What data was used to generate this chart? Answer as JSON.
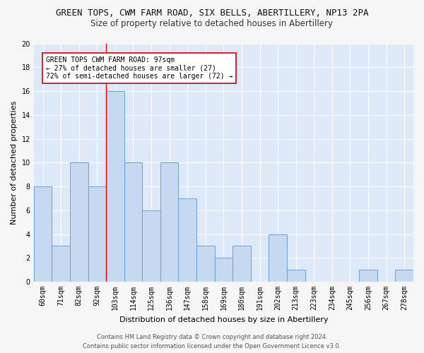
{
  "title": "GREEN TOPS, CWM FARM ROAD, SIX BELLS, ABERTILLERY, NP13 2PA",
  "subtitle": "Size of property relative to detached houses in Abertillery",
  "xlabel": "Distribution of detached houses by size in Abertillery",
  "ylabel": "Number of detached properties",
  "categories": [
    "60sqm",
    "71sqm",
    "82sqm",
    "92sqm",
    "103sqm",
    "114sqm",
    "125sqm",
    "136sqm",
    "147sqm",
    "158sqm",
    "169sqm",
    "180sqm",
    "191sqm",
    "202sqm",
    "213sqm",
    "223sqm",
    "234sqm",
    "245sqm",
    "256sqm",
    "267sqm",
    "278sqm"
  ],
  "values": [
    8,
    3,
    10,
    8,
    16,
    10,
    6,
    10,
    7,
    3,
    2,
    3,
    0,
    4,
    1,
    0,
    0,
    0,
    1,
    0,
    1
  ],
  "bar_color": "#c6d9f1",
  "bar_edge_color": "#6a9fd8",
  "redline_index": 3.5,
  "ylim": [
    0,
    20
  ],
  "yticks": [
    0,
    2,
    4,
    6,
    8,
    10,
    12,
    14,
    16,
    18,
    20
  ],
  "annotation_title": "GREEN TOPS CWM FARM ROAD: 97sqm",
  "annotation_line1": "← 27% of detached houses are smaller (27)",
  "annotation_line2": "72% of semi-detached houses are larger (72) →",
  "annotation_box_facecolor": "#ffffff",
  "annotation_box_edgecolor": "#cc0000",
  "footer_line1": "Contains HM Land Registry data © Crown copyright and database right 2024.",
  "footer_line2": "Contains public sector information licensed under the Open Government Licence v3.0.",
  "background_color": "#dde8f8",
  "figure_facecolor": "#f5f5f5",
  "grid_color": "#ffffff",
  "title_fontsize": 9,
  "subtitle_fontsize": 8.5,
  "axis_label_fontsize": 8,
  "tick_fontsize": 7,
  "annotation_fontsize": 7,
  "footer_fontsize": 6
}
